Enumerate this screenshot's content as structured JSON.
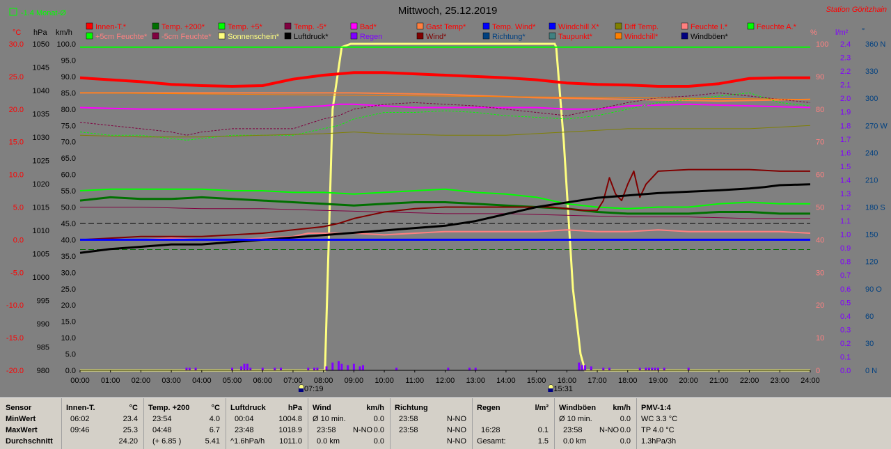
{
  "title": "Mittwoch, 25.12.2019",
  "station": "Station Göritzhain",
  "month_avg": "-1.4 Monat-Ø",
  "units": {
    "celsius": "°C",
    "hpa": "hPa",
    "kmh": "km/h",
    "percent": "%",
    "rain": "l/m²",
    "deg": "°"
  },
  "legend": [
    {
      "label": "Innen-T.*",
      "color": "#ff0000",
      "text_color": "#ff0000"
    },
    {
      "label": "Temp. +200*",
      "color": "#007000",
      "text_color": "#ff0000"
    },
    {
      "label": "Temp. +5*",
      "color": "#00ff00",
      "text_color": "#ff0000"
    },
    {
      "label": "Temp. -5*",
      "color": "#800040",
      "text_color": "#ff0000"
    },
    {
      "label": "Bad*",
      "color": "#ff00ff",
      "text_color": "#ff0000"
    },
    {
      "label": "Gast Temp*",
      "color": "#ff8040",
      "text_color": "#ff0000"
    },
    {
      "label": "Temp. Wind*",
      "color": "#0000ff",
      "text_color": "#ff0000"
    },
    {
      "label": "Windchill X*",
      "color": "#0000ff",
      "text_color": "#ff0000"
    },
    {
      "label": "Diff Temp.",
      "color": "#808000",
      "text_color": "#ff0000"
    },
    {
      "label": "Feuchte I.*",
      "color": "#ff8080",
      "text_color": "#ff0000"
    },
    {
      "label": "Feuchte A.*",
      "color": "#00ff00",
      "text_color": "#ff0000"
    },
    {
      "label": "+5cm Feuchte*",
      "color": "#00ff00",
      "text_color": "#ff8080"
    },
    {
      "label": "-5cm Feuchte*",
      "color": "#800040",
      "text_color": "#ff8080"
    },
    {
      "label": "Sonnenschein*",
      "color": "#ffff80",
      "text_color": "#ffff80"
    },
    {
      "label": "Luftdruck*",
      "color": "#000000",
      "text_color": "#000000"
    },
    {
      "label": "Regen",
      "color": "#8000ff",
      "text_color": "#8000ff"
    },
    {
      "label": "Wind*",
      "color": "#800000",
      "text_color": "#800000"
    },
    {
      "label": "Richtung*",
      "color": "#004080",
      "text_color": "#004080"
    },
    {
      "label": "Taupunkt*",
      "color": "#408080",
      "text_color": "#ff0000"
    },
    {
      "label": "Windchill*",
      "color": "#ff8000",
      "text_color": "#ff0000"
    },
    {
      "label": "Windböen*",
      "color": "#000080",
      "text_color": "#000000"
    }
  ],
  "chart_data": {
    "type": "line",
    "x_label_ticks": [
      "00:00",
      "01:00",
      "02:00",
      "03:00",
      "04:00",
      "05:00",
      "06:00",
      "07:00",
      "08:00",
      "09:00",
      "10:00",
      "11:00",
      "12:00",
      "13:00",
      "14:00",
      "15:00",
      "16:00",
      "17:00",
      "18:00",
      "19:00",
      "20:00",
      "21:00",
      "22:00",
      "23:00",
      "24:00"
    ],
    "xlim": [
      0,
      24
    ],
    "axes": {
      "temp": {
        "ticks": [
          "30.0",
          "25.0",
          "20.0",
          "15.0",
          "10.0",
          "5.0",
          "0.0",
          "-5.0",
          "-10.0",
          "-15.0",
          "-20.0"
        ],
        "range": [
          -20,
          30
        ],
        "color": "#ff0000"
      },
      "pressure": {
        "ticks": [
          "1050",
          "1045",
          "1040",
          "1035",
          "1030",
          "1025",
          "1020",
          "1015",
          "1010",
          "1005",
          "1000",
          "995",
          "990",
          "985",
          "980"
        ],
        "range": [
          980,
          1050
        ],
        "color": "#000000"
      },
      "speed": {
        "ticks": [
          "100.0",
          "95.0",
          "90.0",
          "85.0",
          "80.0",
          "75.0",
          "70.0",
          "65.0",
          "60.0",
          "55.0",
          "50.0",
          "45.0",
          "40.0",
          "35.0",
          "30.0",
          "25.0",
          "20.0",
          "15.0",
          "10.0",
          "5.0",
          "0.0"
        ],
        "range": [
          0,
          100
        ],
        "color": "#000000"
      },
      "percent": {
        "ticks": [
          "100",
          "90",
          "80",
          "70",
          "60",
          "50",
          "40",
          "30",
          "20",
          "10",
          "0"
        ],
        "range": [
          0,
          100
        ],
        "color": "#ff8080"
      },
      "rain": {
        "ticks": [
          "2.4",
          "2.3",
          "2.2",
          "2.1",
          "2.0",
          "1.9",
          "1.8",
          "1.7",
          "1.6",
          "1.5",
          "1.4",
          "1.3",
          "1.2",
          "1.1",
          "1.0",
          "0.9",
          "0.8",
          "0.7",
          "0.6",
          "0.5",
          "0.4",
          "0.3",
          "0.2",
          "0.1",
          "0.0"
        ],
        "range": [
          0,
          2.5
        ],
        "color": "#8000ff"
      },
      "direction": {
        "ticks": [
          "360 N",
          "330",
          "300",
          "270 W",
          "240",
          "210",
          "180 S",
          "150",
          "120",
          "90 O",
          "60",
          "30",
          "0 N"
        ],
        "range": [
          0,
          360
        ],
        "color": "#004080"
      }
    },
    "sun_markers": [
      {
        "label": "07:19",
        "x": 7.32
      },
      {
        "label": "15:31",
        "x": 15.52
      }
    ],
    "series": [
      {
        "name": "Innen-T.*",
        "axis": "temp",
        "color": "#ff0000",
        "width": 4,
        "x": [
          0,
          1,
          2,
          3,
          4,
          5,
          6,
          7,
          8,
          9,
          10,
          11,
          12,
          13,
          14,
          15,
          16,
          17,
          18,
          19,
          20,
          21,
          22,
          23,
          24
        ],
        "values": [
          24.8,
          24.5,
          24.2,
          23.8,
          23.6,
          23.5,
          23.6,
          24.6,
          25.2,
          25.6,
          25.6,
          25.4,
          25.2,
          25.0,
          24.8,
          24.5,
          24.0,
          23.8,
          23.7,
          23.5,
          23.5,
          23.9,
          24.7,
          24.8,
          24.8
        ]
      },
      {
        "name": "Gast Temp*",
        "axis": "speed",
        "color": "#ff8040",
        "width": 2,
        "x": [
          0,
          3,
          6,
          9,
          12,
          15,
          18,
          21,
          24
        ],
        "values": [
          85,
          85,
          85,
          85,
          84.5,
          83.5,
          83,
          82.5,
          83
        ]
      },
      {
        "name": "Bad*",
        "axis": "speed",
        "color": "#ff00ff",
        "width": 2,
        "x": [
          0,
          2,
          4,
          6,
          7,
          8,
          8.5,
          9,
          10,
          11,
          12,
          13,
          14,
          15,
          16,
          17,
          18,
          20,
          22,
          24
        ],
        "values": [
          80.5,
          80,
          80,
          80,
          80.5,
          81,
          81.5,
          81.5,
          81,
          80.5,
          80.5,
          80.5,
          80.5,
          80.5,
          80,
          80,
          81,
          81.5,
          81,
          80.5
        ]
      },
      {
        "name": "+5cm Feuchte*",
        "axis": "speed",
        "color": "#00ff00",
        "width": 1,
        "dash": "3,2",
        "x": [
          0,
          1,
          2,
          3,
          3.5,
          4,
          5,
          6,
          7,
          8,
          8.5,
          9,
          10,
          11,
          12,
          13,
          14,
          15,
          16,
          17,
          18,
          19,
          20,
          21,
          22,
          23,
          24
        ],
        "values": [
          73,
          72,
          72,
          71,
          70.5,
          71,
          72,
          72,
          72,
          74,
          75,
          77,
          79,
          79,
          79.5,
          79,
          78,
          77.5,
          77,
          78,
          80,
          82,
          83,
          84,
          85,
          82,
          81
        ]
      },
      {
        "name": "-5cm Feuchte*",
        "axis": "speed",
        "color": "#800040",
        "width": 1,
        "dash": "3,2",
        "x": [
          0,
          1,
          2,
          3,
          3.5,
          4,
          5,
          6,
          7,
          8,
          8.5,
          9,
          10,
          11,
          12,
          13,
          14,
          15,
          16,
          17,
          18,
          19,
          20,
          21,
          22,
          23,
          24
        ],
        "values": [
          76,
          75,
          74,
          73,
          72,
          73,
          74,
          74,
          74,
          77,
          78,
          80,
          81.5,
          82,
          81.5,
          81,
          80,
          79,
          78,
          80,
          82,
          83.5,
          84,
          85,
          84,
          83,
          82
        ]
      },
      {
        "name": "Diff Temp.",
        "axis": "speed",
        "color": "#808000",
        "width": 1,
        "x": [
          0,
          2,
          4,
          6,
          8,
          9,
          10,
          12,
          14,
          16,
          18,
          20,
          22,
          24
        ],
        "values": [
          72,
          71.5,
          71.5,
          72,
          72.5,
          73,
          72.5,
          72,
          72,
          73,
          74,
          74,
          74,
          75
        ]
      },
      {
        "name": "Temp. +5*",
        "axis": "speed",
        "color": "#00ff00",
        "width": 2,
        "x": [
          0,
          1,
          2,
          3,
          4,
          5,
          6,
          7,
          8,
          9,
          10,
          11,
          12,
          13,
          14,
          15,
          16,
          17,
          18,
          19,
          20,
          21,
          22,
          23,
          24
        ],
        "values": [
          55,
          55.5,
          55.5,
          55.5,
          55.5,
          55,
          55,
          54.5,
          54.5,
          54,
          54.5,
          55,
          55.5,
          54.5,
          54,
          53,
          51,
          50,
          49.5,
          50,
          50,
          51,
          51.5,
          51,
          51
        ]
      },
      {
        "name": "Temp. +200*",
        "axis": "speed",
        "color": "#007000",
        "width": 3,
        "x": [
          0,
          1,
          2,
          3,
          4,
          5,
          6,
          7,
          8,
          9,
          10,
          11,
          12,
          13,
          14,
          15,
          16,
          17,
          18,
          19,
          20,
          21,
          22,
          23,
          24
        ],
        "values": [
          52,
          53,
          52.5,
          52.5,
          53,
          52.5,
          52,
          51.5,
          51,
          50.5,
          51,
          51.5,
          51.5,
          51,
          50.5,
          50,
          49.5,
          48.5,
          48,
          48,
          48,
          48.5,
          48.5,
          48,
          48
        ]
      },
      {
        "name": "Temp. -5*",
        "axis": "speed",
        "color": "#800040",
        "width": 1,
        "x": [
          0,
          2,
          4,
          6,
          8,
          10,
          12,
          14,
          16,
          18,
          20,
          22,
          24
        ],
        "values": [
          50,
          50,
          49.5,
          49.5,
          49,
          48.5,
          48,
          48,
          47.5,
          47,
          47,
          46.5,
          46.5
        ]
      },
      {
        "name": "Wind*",
        "axis": "speed",
        "color": "#800000",
        "width": 2,
        "x": [
          0,
          1,
          2,
          3,
          4,
          5,
          6,
          7,
          8,
          8.5,
          9,
          9.5,
          10,
          11,
          12,
          13,
          14,
          15,
          15.5,
          16,
          16.5,
          16.8,
          17,
          17.2,
          17.4,
          17.6,
          17.8,
          18,
          18.2,
          18.4,
          18.6,
          19,
          20,
          21,
          22,
          23,
          24
        ],
        "values": [
          40,
          40.5,
          41,
          41,
          41,
          41.5,
          42,
          43,
          44,
          45,
          46.5,
          47.5,
          48.5,
          49.5,
          50,
          50,
          50,
          50,
          50,
          49.5,
          49,
          49,
          49,
          52,
          59,
          54,
          52,
          57,
          61,
          53,
          57,
          61,
          61.5,
          61.5,
          61.5,
          61,
          61
        ]
      },
      {
        "name": "Feuchte I.*",
        "axis": "percent",
        "color": "#ff8080",
        "width": 2,
        "x": [
          0,
          2,
          3,
          4,
          5,
          6,
          7,
          7.5,
          8,
          9,
          10,
          11,
          12,
          13,
          14,
          15,
          16,
          17,
          18,
          19,
          20,
          21,
          22,
          23,
          24
        ],
        "values": [
          40,
          40,
          40.5,
          40,
          40,
          40.5,
          41,
          42,
          42,
          42,
          41.5,
          42,
          42.5,
          42.5,
          42.5,
          42.5,
          43,
          42.5,
          42.5,
          43,
          42.5,
          42.5,
          42.5,
          42.5,
          42
        ]
      },
      {
        "name": "Luftdruck*",
        "axis": "pressure",
        "color": "#000000",
        "width": 3,
        "x": [
          0,
          1,
          2,
          3,
          4,
          5,
          6,
          7,
          8,
          9,
          10,
          11,
          12,
          13,
          14,
          15,
          15.5,
          16,
          17,
          18,
          19,
          20,
          21,
          22,
          22.5,
          23,
          24
        ],
        "values": [
          1005.2,
          1006,
          1006.5,
          1007,
          1007,
          1007.5,
          1008,
          1008.5,
          1009,
          1009.5,
          1010,
          1010.5,
          1011,
          1012,
          1013.5,
          1015,
          1015.5,
          1016,
          1017,
          1017.5,
          1018,
          1018.3,
          1018.6,
          1019,
          1019.3,
          1019.7,
          1019.9
        ]
      },
      {
        "name": "Temp. Wind*",
        "axis": "temp",
        "color": "#0000ff",
        "width": 3,
        "x": [
          0,
          24
        ],
        "values": [
          0,
          0
        ]
      },
      {
        "name": "Feuchte A.*",
        "axis": "speed",
        "color": "#00ff00",
        "width": 2,
        "x": [
          0,
          24
        ],
        "values": [
          99,
          99
        ]
      },
      {
        "name": "Windchill*",
        "axis": "speed",
        "color": "#ff8000",
        "width": 1,
        "x": [
          0,
          24
        ],
        "values": [
          85,
          83
        ]
      }
    ],
    "sunshine": {
      "name": "Sonnenschein*",
      "axis": "percent",
      "color": "#ffff80",
      "x": [
        0,
        8.0,
        8.05,
        8.3,
        8.6,
        8.9,
        15.6,
        15.65,
        15.9,
        16.2,
        16.45,
        16.6,
        24
      ],
      "values": [
        0,
        0,
        0,
        80,
        99,
        100,
        100,
        99,
        70,
        25,
        5,
        0,
        0
      ]
    },
    "rain_bars": {
      "name": "Regen",
      "axis": "rain",
      "color": "#8000ff",
      "x": [
        3.5,
        3.6,
        3.8,
        5.0,
        5.3,
        5.4,
        5.5,
        5.6,
        6.0,
        6.4,
        6.6,
        7.5,
        7.7,
        7.8,
        8.1,
        8.3,
        8.5,
        8.6,
        8.8,
        9.0,
        9.2,
        9.3,
        10.4,
        12.1,
        12.8,
        13.0,
        16.4,
        16.5,
        16.6,
        16.8,
        17.2,
        17.4,
        18.4,
        18.6,
        18.7,
        18.8,
        18.9,
        19.0,
        19.2,
        20.0
      ],
      "values": [
        0.02,
        0.02,
        0.02,
        0.02,
        0.03,
        0.05,
        0.05,
        0.02,
        0.02,
        0.02,
        0.02,
        0.02,
        0.02,
        0.02,
        0.03,
        0.06,
        0.07,
        0.05,
        0.04,
        0.05,
        0.03,
        0.04,
        0.02,
        0.02,
        0.02,
        0.02,
        0.06,
        0.04,
        0.04,
        0.03,
        0.02,
        0.02,
        0.02,
        0.02,
        0.02,
        0.02,
        0.02,
        0.02,
        0.02,
        0.02
      ]
    },
    "hlines": [
      {
        "axis": "speed",
        "value": 45,
        "color": "#000000",
        "dash": "8,4"
      },
      {
        "axis": "speed",
        "value": 37,
        "color": "#007000",
        "dash": "8,4"
      }
    ]
  },
  "stats": {
    "labels": {
      "sensor": "Sensor",
      "min": "MinWert",
      "max": "MaxWert",
      "avg": "Durchschnitt"
    },
    "innen": {
      "title": "Innen-T.",
      "unit": "°C",
      "min_time": "06:02",
      "min_val": "23.4",
      "max_time": "09:46",
      "max_val": "25.3",
      "avg": "24.20"
    },
    "temp200": {
      "title": "Temp. +200",
      "unit": "°C",
      "min_time": "23:54",
      "min_val": "4.0",
      "max_time": "04:48",
      "max_val": "6.7",
      "avg_note": "(+ 6.85 )",
      "avg": "5.41"
    },
    "druck": {
      "title": "Luftdruck",
      "unit": "hPa",
      "min_time": "00:04",
      "min_val": "1004.8",
      "max_time": "23:48",
      "max_val": "1018.9",
      "avg_note": "^1.6hPa/h",
      "avg": "1011.0"
    },
    "wind": {
      "title": "Wind",
      "unit": "km/h",
      "min_note": "Ø 10 min.",
      "min_val": "0.0",
      "max_time": "23:58",
      "max_dir": "N-NO",
      "max_val": "0.0",
      "avg_note": "0.0 km",
      "avg": "0.0"
    },
    "richtung": {
      "title": "Richtung",
      "min_time": "23:58",
      "min_val": "N-NO",
      "max_time": "23:58",
      "max_val": "N-NO",
      "avg": "N-NO"
    },
    "regen": {
      "title": "Regen",
      "unit": "l/m²",
      "max_time": "16:28",
      "max_val": "0.1",
      "avg_note": "Gesamt:",
      "avg": "1.5"
    },
    "boeen": {
      "title": "Windböen",
      "unit": "km/h",
      "min_note": "Ø 10 min.",
      "min_val": "0.0",
      "max_time": "23:58",
      "max_dir": "N-NO",
      "max_val": "0.0",
      "avg_note": "0.0 km",
      "avg": "0.0"
    },
    "pmv": {
      "title": "PMV-1:4",
      "line1": "WC 3.3 °C",
      "line2": "TP 4.0 °C",
      "line3": "1.3hPa/3h"
    }
  }
}
